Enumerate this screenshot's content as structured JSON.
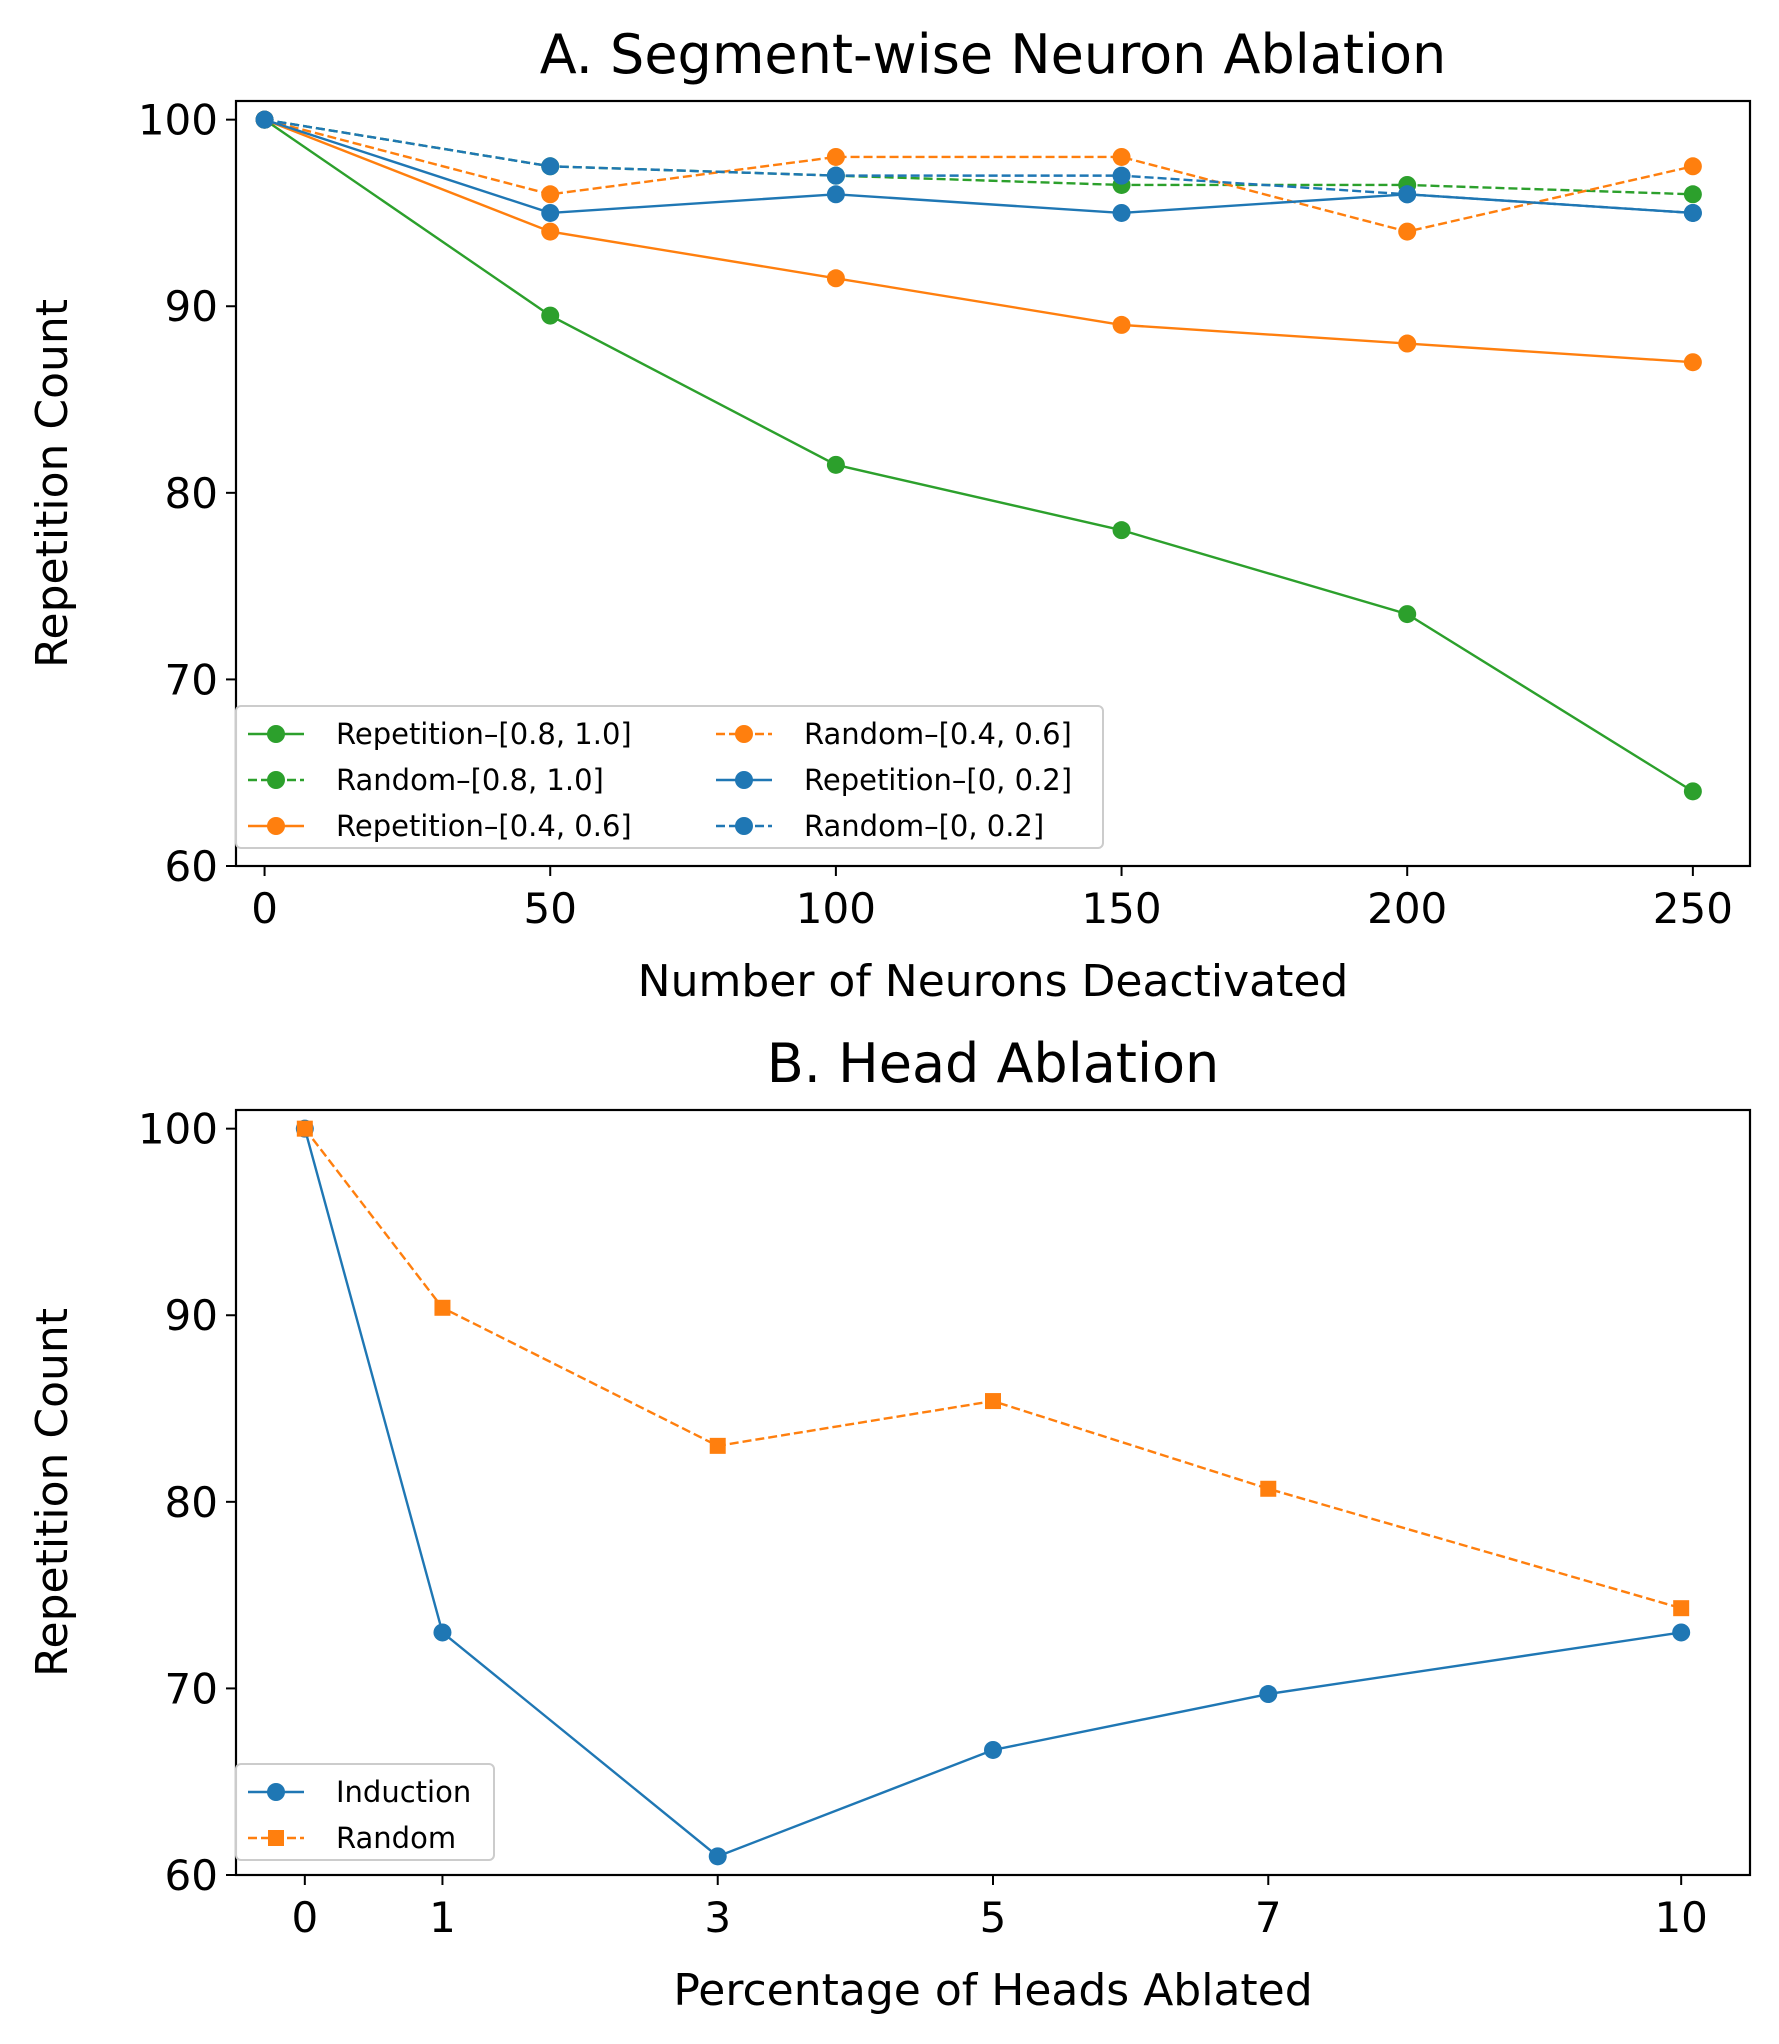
{
  "chart_data": [
    {
      "type": "line",
      "title": "A. Segment-wise Neuron Ablation",
      "xlabel": "Number of Neurons Deactivated",
      "ylabel": "Repetition Count",
      "x": [
        0,
        50,
        100,
        150,
        200,
        250
      ],
      "xlim": [
        -5,
        260
      ],
      "ylim": [
        60,
        101
      ],
      "xticks": [
        "0",
        "50",
        "100",
        "150",
        "200",
        "250"
      ],
      "yticks": [
        "60",
        "70",
        "80",
        "90",
        "100"
      ],
      "legend_position": "lower-left",
      "legend_columns": 2,
      "series": [
        {
          "name": "Repetition–[0.8, 1.0]",
          "color": "#2ca02c",
          "dash": "solid",
          "marker": "circle",
          "values": [
            100,
            89.5,
            81.5,
            78,
            73.5,
            64
          ]
        },
        {
          "name": "Random–[0.8, 1.0]",
          "color": "#2ca02c",
          "dash": "dashed",
          "marker": "circle",
          "values": [
            100,
            97.5,
            97,
            96.5,
            96.5,
            96
          ]
        },
        {
          "name": "Repetition–[0.4, 0.6]",
          "color": "#ff7f0e",
          "dash": "solid",
          "marker": "circle",
          "values": [
            100,
            94,
            91.5,
            89,
            88,
            87
          ]
        },
        {
          "name": "Random–[0.4, 0.6]",
          "color": "#ff7f0e",
          "dash": "dashed",
          "marker": "circle",
          "values": [
            100,
            96,
            98,
            98,
            94,
            97.5
          ]
        },
        {
          "name": "Repetition–[0, 0.2]",
          "color": "#1f77b4",
          "dash": "solid",
          "marker": "circle",
          "values": [
            100,
            95,
            96,
            95,
            96,
            95
          ]
        },
        {
          "name": "Random–[0, 0.2]",
          "color": "#1f77b4",
          "dash": "dashed",
          "marker": "circle",
          "values": [
            100,
            97.5,
            97,
            97,
            96,
            95
          ]
        }
      ]
    },
    {
      "type": "line",
      "title": "B. Head Ablation",
      "xlabel": "Percentage of Heads Ablated",
      "ylabel": "Repetition Count",
      "x": [
        0,
        1,
        3,
        5,
        7,
        10
      ],
      "xlim": [
        -0.5,
        10.5
      ],
      "ylim": [
        60,
        101
      ],
      "xticks": [
        "0",
        "1",
        "3",
        "5",
        "7",
        "10"
      ],
      "yticks": [
        "60",
        "70",
        "80",
        "90",
        "100"
      ],
      "legend_position": "lower-left",
      "legend_columns": 1,
      "series": [
        {
          "name": "Induction",
          "color": "#1f77b4",
          "dash": "solid",
          "marker": "circle",
          "values": [
            100,
            73,
            61,
            66.7,
            69.7,
            73
          ]
        },
        {
          "name": "Random",
          "color": "#ff7f0e",
          "dash": "dashed",
          "marker": "square",
          "values": [
            100,
            90.4,
            83,
            85.4,
            80.7,
            74.3
          ]
        }
      ]
    }
  ]
}
